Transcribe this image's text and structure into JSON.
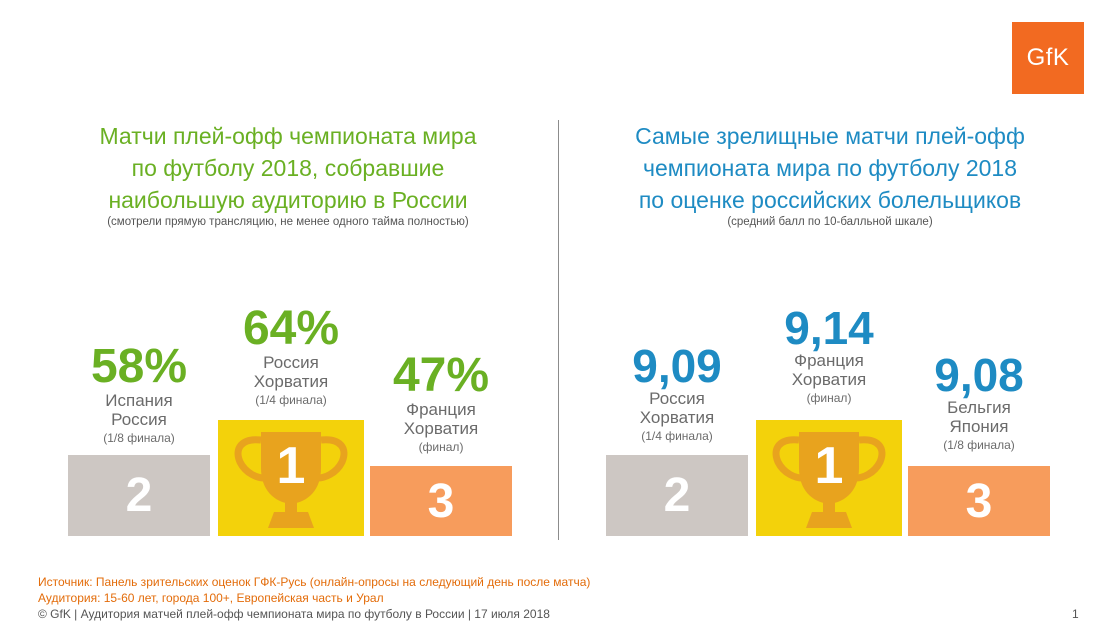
{
  "logo": {
    "text": "GfK",
    "color": "#f26a21"
  },
  "colors": {
    "green": "#6ab023",
    "blue": "#1e8bc3",
    "grey": "#cdc7c3",
    "yellow": "#f3d20b",
    "orange": "#f79c5c",
    "cup": "#e8a31e"
  },
  "left": {
    "title_lines": [
      "Матчи плей-офф чемпионата мира",
      "по футболу 2018, собравшие",
      "наибольшую аудиторию в России"
    ],
    "subtitle": "(смотрели прямую трансляцию, не менее одного тайма полностью)",
    "places": [
      {
        "rank": "2",
        "value": "58%",
        "team1": "Испания",
        "team2": "Россия",
        "stage": "(1/8 финала)"
      },
      {
        "rank": "1",
        "value": "64%",
        "team1": "Россия",
        "team2": "Хорватия",
        "stage": "(1/4 финала)"
      },
      {
        "rank": "3",
        "value": "47%",
        "team1": "Франция",
        "team2": "Хорватия",
        "stage": "(финал)"
      }
    ]
  },
  "right": {
    "title_lines": [
      "Самые зрелищные матчи плей-офф",
      "чемпионата мира по футболу 2018",
      "по оценке российских болельщиков"
    ],
    "subtitle": "(средний балл по 10-балльной шкале)",
    "places": [
      {
        "rank": "2",
        "value": "9,09",
        "team1": "Россия",
        "team2": "Хорватия",
        "stage": "(1/4 финала)"
      },
      {
        "rank": "1",
        "value": "9,14",
        "team1": "Франция",
        "team2": "Хорватия",
        "stage": "(финал)"
      },
      {
        "rank": "3",
        "value": "9,08",
        "team1": "Бельгия",
        "team2": "Япония",
        "stage": "(1/8 финала)"
      }
    ]
  },
  "footer": {
    "source_line1": "Источник: Панель зрительских оценок ГФК-Русь (онлайн-опросы на следующий день после матча)",
    "source_line2": "Аудитория: 15-60 лет, города 100+, Европейская часть и Урал",
    "copyright": "© GfK | Аудитория матчей плей-офф чемпионата мира по футболу в России | 17 июля 2018",
    "page_number": "1"
  }
}
